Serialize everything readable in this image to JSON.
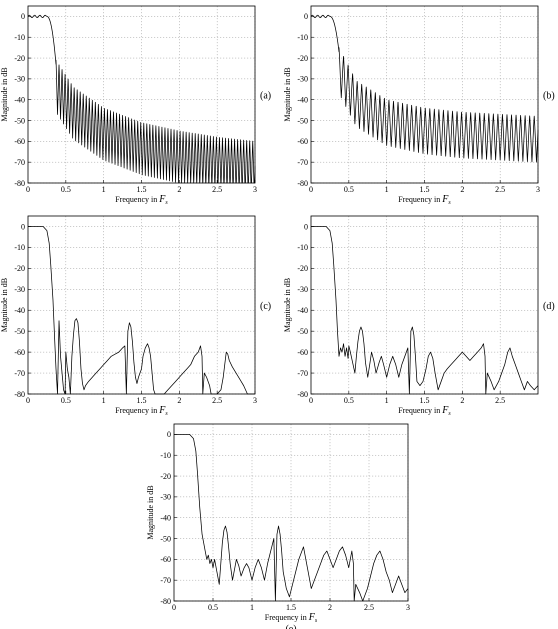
{
  "chart_data": [
    {
      "id": "a",
      "panel_label": "(a)",
      "type": "line",
      "xlabel": "Frequency in",
      "xlabel_symbol": "F",
      "xlabel_sub": "s",
      "ylabel": "Magnitude in dB",
      "xlim": [
        0,
        3
      ],
      "ylim": [
        -80,
        5
      ],
      "xticks": [
        0.5,
        1,
        1.5,
        2,
        2.5,
        3
      ],
      "xticklabels": [
        "0.5",
        "1",
        "1.5",
        "2",
        "2.5",
        "3"
      ],
      "yticks": [
        0,
        -10,
        -20,
        -30,
        -40,
        -50,
        -60,
        -70,
        -80
      ],
      "grid": true,
      "shape": {
        "passband_edge": 0.3,
        "stopband_start": 0.37,
        "envelope_db": [
          [
            0.37,
            -21
          ],
          [
            0.6,
            -34
          ],
          [
            1.0,
            -44
          ],
          [
            1.5,
            -51
          ],
          [
            2.0,
            -55
          ],
          [
            2.5,
            -58
          ],
          [
            3.0,
            -60
          ]
        ],
        "ripple_period": 0.04,
        "null_depth_db": 25
      }
    },
    {
      "id": "b",
      "panel_label": "(b)",
      "type": "line",
      "xlabel": "Frequency in",
      "xlabel_symbol": "F",
      "xlabel_sub": "s",
      "ylabel": "Magnitude in dB",
      "xlim": [
        0,
        3
      ],
      "ylim": [
        -80,
        5
      ],
      "xticks": [
        0.5,
        1,
        1.5,
        2,
        2.5,
        3
      ],
      "xticklabels": [
        "0.5",
        "1",
        "1.5",
        "2",
        "2.5",
        "3"
      ],
      "yticks": [
        0,
        -10,
        -20,
        -30,
        -40,
        -50,
        -60,
        -70,
        -80
      ],
      "grid": true,
      "shape": {
        "passband_edge": 0.3,
        "stopband_start": 0.37,
        "envelope_db": [
          [
            0.37,
            -15
          ],
          [
            0.6,
            -31
          ],
          [
            1.0,
            -40
          ],
          [
            1.5,
            -44
          ],
          [
            2.0,
            -46
          ],
          [
            2.5,
            -47
          ],
          [
            3.0,
            -48
          ]
        ],
        "ripple_period": 0.06,
        "null_depth_db": 22
      }
    },
    {
      "id": "c",
      "panel_label": "(c)",
      "type": "line",
      "xlabel": "Frequency in",
      "xlabel_symbol": "F",
      "xlabel_sub": "s",
      "ylabel": "Magnitude in dB",
      "xlim": [
        0,
        3
      ],
      "ylim": [
        -80,
        5
      ],
      "xticks": [
        0.5,
        1,
        1.5,
        2,
        2.5,
        3
      ],
      "xticklabels": [
        "0.5",
        "1",
        "1.5",
        "2",
        "2.5",
        "3"
      ],
      "yticks": [
        0,
        -10,
        -20,
        -30,
        -40,
        -50,
        -60,
        -70,
        -80
      ],
      "grid": true,
      "points": [
        [
          0,
          0
        ],
        [
          0.2,
          0
        ],
        [
          0.25,
          -2
        ],
        [
          0.28,
          -8
        ],
        [
          0.3,
          -18
        ],
        [
          0.33,
          -35
        ],
        [
          0.35,
          -52
        ],
        [
          0.37,
          -68
        ],
        [
          0.39,
          -80
        ],
        [
          0.41,
          -45
        ],
        [
          0.43,
          -62
        ],
        [
          0.45,
          -70
        ],
        [
          0.47,
          -78
        ],
        [
          0.49,
          -80
        ],
        [
          0.5,
          -60
        ],
        [
          0.52,
          -68
        ],
        [
          0.54,
          -72
        ],
        [
          0.56,
          -80
        ],
        [
          0.58,
          -62
        ],
        [
          0.6,
          -52
        ],
        [
          0.62,
          -45
        ],
        [
          0.64,
          -44
        ],
        [
          0.66,
          -46
        ],
        [
          0.68,
          -55
        ],
        [
          0.7,
          -68
        ],
        [
          0.72,
          -75
        ],
        [
          0.74,
          -78
        ],
        [
          0.76,
          -76
        ],
        [
          0.8,
          -74
        ],
        [
          0.85,
          -72
        ],
        [
          0.9,
          -70
        ],
        [
          0.95,
          -68
        ],
        [
          1.0,
          -66
        ],
        [
          1.05,
          -64
        ],
        [
          1.1,
          -62
        ],
        [
          1.15,
          -61
        ],
        [
          1.2,
          -60
        ],
        [
          1.25,
          -58
        ],
        [
          1.28,
          -57
        ],
        [
          1.3,
          -80
        ],
        [
          1.32,
          -50
        ],
        [
          1.34,
          -46
        ],
        [
          1.36,
          -48
        ],
        [
          1.38,
          -55
        ],
        [
          1.4,
          -65
        ],
        [
          1.42,
          -72
        ],
        [
          1.44,
          -75
        ],
        [
          1.46,
          -72
        ],
        [
          1.5,
          -68
        ],
        [
          1.52,
          -62
        ],
        [
          1.55,
          -58
        ],
        [
          1.58,
          -56
        ],
        [
          1.6,
          -58
        ],
        [
          1.62,
          -62
        ],
        [
          1.64,
          -70
        ],
        [
          1.66,
          -78
        ],
        [
          1.68,
          -80
        ],
        [
          1.75,
          -80
        ],
        [
          1.8,
          -80
        ],
        [
          1.85,
          -78
        ],
        [
          1.9,
          -76
        ],
        [
          1.95,
          -74
        ],
        [
          2.0,
          -72
        ],
        [
          2.05,
          -70
        ],
        [
          2.1,
          -68
        ],
        [
          2.15,
          -66
        ],
        [
          2.2,
          -62
        ],
        [
          2.25,
          -60
        ],
        [
          2.28,
          -57
        ],
        [
          2.3,
          -62
        ],
        [
          2.31,
          -80
        ],
        [
          2.33,
          -70
        ],
        [
          2.36,
          -72
        ],
        [
          2.4,
          -76
        ],
        [
          2.42,
          -80
        ],
        [
          2.5,
          -80
        ],
        [
          2.55,
          -78
        ],
        [
          2.58,
          -72
        ],
        [
          2.6,
          -66
        ],
        [
          2.62,
          -60
        ],
        [
          2.64,
          -61
        ],
        [
          2.66,
          -64
        ],
        [
          2.7,
          -67
        ],
        [
          2.75,
          -70
        ],
        [
          2.8,
          -73
        ],
        [
          2.85,
          -76
        ],
        [
          2.9,
          -80
        ],
        [
          3.0,
          -80
        ]
      ]
    },
    {
      "id": "d",
      "panel_label": "(d)",
      "type": "line",
      "xlabel": "Frequency in",
      "xlabel_symbol": "F",
      "xlabel_sub": "s",
      "ylabel": "Magnitude in dB",
      "xlim": [
        0,
        3
      ],
      "ylim": [
        -80,
        5
      ],
      "xticks": [
        0.5,
        1,
        1.5,
        2,
        2.5
      ],
      "xticklabels": [
        "0.5",
        "1",
        "1.5",
        "2",
        "2.5"
      ],
      "yticks": [
        0,
        -10,
        -20,
        -30,
        -40,
        -50,
        -60,
        -70,
        -80
      ],
      "grid": true,
      "points": [
        [
          0,
          0
        ],
        [
          0.2,
          0
        ],
        [
          0.25,
          -2
        ],
        [
          0.28,
          -8
        ],
        [
          0.3,
          -18
        ],
        [
          0.33,
          -35
        ],
        [
          0.35,
          -50
        ],
        [
          0.37,
          -62
        ],
        [
          0.39,
          -58
        ],
        [
          0.41,
          -60
        ],
        [
          0.43,
          -56
        ],
        [
          0.45,
          -62
        ],
        [
          0.47,
          -58
        ],
        [
          0.49,
          -63
        ],
        [
          0.5,
          -57
        ],
        [
          0.52,
          -60
        ],
        [
          0.55,
          -65
        ],
        [
          0.58,
          -70
        ],
        [
          0.6,
          -62
        ],
        [
          0.62,
          -55
        ],
        [
          0.64,
          -50
        ],
        [
          0.66,
          -48
        ],
        [
          0.68,
          -50
        ],
        [
          0.7,
          -56
        ],
        [
          0.72,
          -65
        ],
        [
          0.75,
          -72
        ],
        [
          0.78,
          -65
        ],
        [
          0.8,
          -60
        ],
        [
          0.83,
          -64
        ],
        [
          0.86,
          -70
        ],
        [
          0.9,
          -65
        ],
        [
          0.93,
          -62
        ],
        [
          0.96,
          -66
        ],
        [
          1.0,
          -72
        ],
        [
          1.04,
          -66
        ],
        [
          1.08,
          -62
        ],
        [
          1.12,
          -66
        ],
        [
          1.16,
          -72
        ],
        [
          1.2,
          -66
        ],
        [
          1.24,
          -62
        ],
        [
          1.28,
          -58
        ],
        [
          1.3,
          -80
        ],
        [
          1.32,
          -50
        ],
        [
          1.34,
          -48
        ],
        [
          1.36,
          -52
        ],
        [
          1.38,
          -62
        ],
        [
          1.4,
          -74
        ],
        [
          1.44,
          -76
        ],
        [
          1.48,
          -74
        ],
        [
          1.52,
          -68
        ],
        [
          1.55,
          -62
        ],
        [
          1.58,
          -60
        ],
        [
          1.61,
          -63
        ],
        [
          1.64,
          -70
        ],
        [
          1.68,
          -78
        ],
        [
          1.72,
          -74
        ],
        [
          1.76,
          -70
        ],
        [
          1.8,
          -68
        ],
        [
          1.85,
          -66
        ],
        [
          1.9,
          -64
        ],
        [
          1.95,
          -62
        ],
        [
          2.0,
          -60
        ],
        [
          2.05,
          -62
        ],
        [
          2.1,
          -64
        ],
        [
          2.15,
          -62
        ],
        [
          2.2,
          -60
        ],
        [
          2.25,
          -58
        ],
        [
          2.28,
          -56
        ],
        [
          2.3,
          -62
        ],
        [
          2.31,
          -80
        ],
        [
          2.33,
          -70
        ],
        [
          2.38,
          -74
        ],
        [
          2.42,
          -78
        ],
        [
          2.48,
          -74
        ],
        [
          2.52,
          -70
        ],
        [
          2.56,
          -66
        ],
        [
          2.6,
          -60
        ],
        [
          2.63,
          -58
        ],
        [
          2.66,
          -62
        ],
        [
          2.7,
          -66
        ],
        [
          2.74,
          -70
        ],
        [
          2.78,
          -74
        ],
        [
          2.82,
          -78
        ],
        [
          2.86,
          -74
        ],
        [
          2.9,
          -76
        ],
        [
          2.95,
          -78
        ],
        [
          3.0,
          -76
        ]
      ]
    },
    {
      "id": "e",
      "panel_label": "(e)",
      "type": "line",
      "xlabel": "Frequency in",
      "xlabel_symbol": "F",
      "xlabel_sub": "s",
      "ylabel": "Magnitude in dB",
      "xlim": [
        0,
        3
      ],
      "ylim": [
        -80,
        5
      ],
      "xticks": [
        0.5,
        1,
        1.5,
        2,
        2.5,
        3
      ],
      "xticklabels": [
        "0.5",
        "1",
        "1.5",
        "2",
        "2.5",
        "3"
      ],
      "yticks": [
        0,
        -10,
        -20,
        -30,
        -40,
        -50,
        -60,
        -70,
        -80
      ],
      "grid": true,
      "points": [
        [
          0,
          0
        ],
        [
          0.2,
          0
        ],
        [
          0.25,
          -2
        ],
        [
          0.28,
          -8
        ],
        [
          0.3,
          -18
        ],
        [
          0.33,
          -35
        ],
        [
          0.36,
          -48
        ],
        [
          0.38,
          -52
        ],
        [
          0.4,
          -56
        ],
        [
          0.42,
          -60
        ],
        [
          0.44,
          -58
        ],
        [
          0.46,
          -62
        ],
        [
          0.48,
          -60
        ],
        [
          0.5,
          -64
        ],
        [
          0.52,
          -60
        ],
        [
          0.55,
          -66
        ],
        [
          0.58,
          -72
        ],
        [
          0.6,
          -62
        ],
        [
          0.62,
          -52
        ],
        [
          0.64,
          -46
        ],
        [
          0.66,
          -44
        ],
        [
          0.68,
          -47
        ],
        [
          0.7,
          -54
        ],
        [
          0.72,
          -62
        ],
        [
          0.75,
          -70
        ],
        [
          0.78,
          -64
        ],
        [
          0.8,
          -60
        ],
        [
          0.83,
          -63
        ],
        [
          0.86,
          -68
        ],
        [
          0.9,
          -64
        ],
        [
          0.93,
          -62
        ],
        [
          0.96,
          -64
        ],
        [
          1.0,
          -70
        ],
        [
          1.04,
          -64
        ],
        [
          1.08,
          -60
        ],
        [
          1.12,
          -64
        ],
        [
          1.16,
          -70
        ],
        [
          1.2,
          -62
        ],
        [
          1.24,
          -56
        ],
        [
          1.28,
          -50
        ],
        [
          1.3,
          -80
        ],
        [
          1.32,
          -48
        ],
        [
          1.34,
          -44
        ],
        [
          1.36,
          -48
        ],
        [
          1.38,
          -56
        ],
        [
          1.4,
          -66
        ],
        [
          1.44,
          -74
        ],
        [
          1.48,
          -78
        ],
        [
          1.52,
          -72
        ],
        [
          1.56,
          -66
        ],
        [
          1.6,
          -60
        ],
        [
          1.64,
          -56
        ],
        [
          1.66,
          -54
        ],
        [
          1.68,
          -58
        ],
        [
          1.72,
          -66
        ],
        [
          1.76,
          -74
        ],
        [
          1.8,
          -70
        ],
        [
          1.84,
          -66
        ],
        [
          1.88,
          -62
        ],
        [
          1.92,
          -58
        ],
        [
          1.96,
          -56
        ],
        [
          2.0,
          -60
        ],
        [
          2.04,
          -64
        ],
        [
          2.08,
          -60
        ],
        [
          2.12,
          -56
        ],
        [
          2.16,
          -54
        ],
        [
          2.2,
          -58
        ],
        [
          2.24,
          -64
        ],
        [
          2.28,
          -56
        ],
        [
          2.3,
          -62
        ],
        [
          2.31,
          -80
        ],
        [
          2.33,
          -72
        ],
        [
          2.38,
          -76
        ],
        [
          2.42,
          -80
        ],
        [
          2.48,
          -74
        ],
        [
          2.52,
          -68
        ],
        [
          2.56,
          -62
        ],
        [
          2.6,
          -58
        ],
        [
          2.64,
          -56
        ],
        [
          2.68,
          -60
        ],
        [
          2.72,
          -66
        ],
        [
          2.76,
          -70
        ],
        [
          2.8,
          -76
        ],
        [
          2.84,
          -72
        ],
        [
          2.88,
          -68
        ],
        [
          2.92,
          -72
        ],
        [
          2.96,
          -76
        ],
        [
          3.0,
          -74
        ]
      ]
    }
  ]
}
